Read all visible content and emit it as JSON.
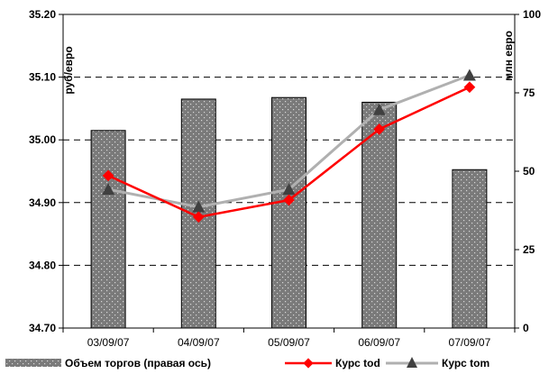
{
  "chart_data": {
    "type": "bar",
    "categories": [
      "03/09/07",
      "04/09/07",
      "05/09/07",
      "06/09/07",
      "07/09/07"
    ],
    "left_axis": {
      "label": "руб/евро",
      "min": 34.7,
      "max": 35.2,
      "ticks": [
        "34.70",
        "34.80",
        "34.90",
        "35.00",
        "35.10",
        "35.20"
      ]
    },
    "right_axis": {
      "label": "млн евро",
      "min": 0,
      "max": 100,
      "ticks": [
        "0",
        "25",
        "50",
        "75",
        "100"
      ]
    },
    "series": [
      {
        "name": "Объем торгов (правая ось)",
        "kind": "bar",
        "axis": "right",
        "values": [
          63,
          73,
          73.5,
          72,
          50.5
        ],
        "color": "#808080"
      },
      {
        "name": "Курс tod",
        "kind": "line",
        "axis": "left",
        "values": [
          34.943,
          34.877,
          34.904,
          35.017,
          35.084
        ],
        "color": "#ff0000",
        "marker": "diamond"
      },
      {
        "name": "Курс tom",
        "kind": "line",
        "axis": "left",
        "values": [
          34.921,
          34.893,
          34.921,
          35.048,
          35.103
        ],
        "color": "#b0b0b0",
        "marker": "triangle"
      }
    ],
    "grid": true,
    "legend": "bottom"
  }
}
